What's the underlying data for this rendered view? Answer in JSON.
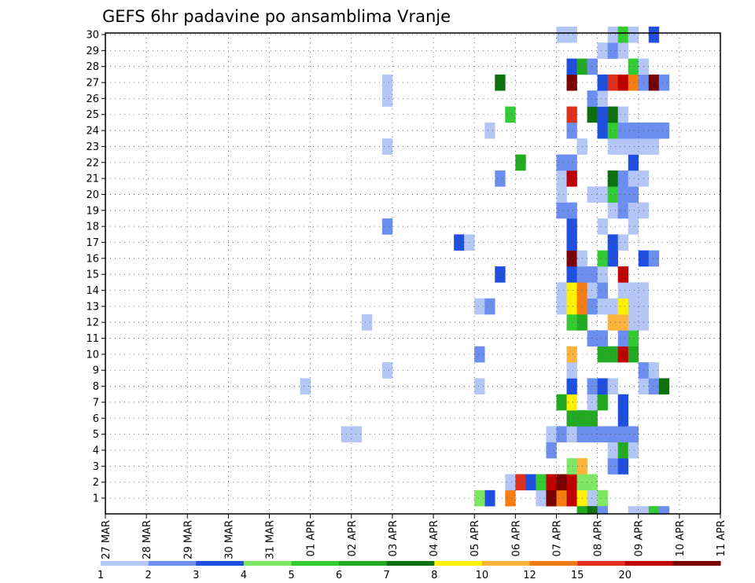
{
  "chart_data": {
    "type": "heatmap",
    "title": "GEFS 6hr padavine po ansamblima Vranje",
    "x_tick_labels": [
      "27 MAR",
      "28 MAR",
      "29 MAR",
      "30 MAR",
      "31 MAR",
      "01 APR",
      "02 APR",
      "03 APR",
      "04 APR",
      "05 APR",
      "06 APR",
      "07 APR",
      "08 APR",
      "09 APR",
      "10 APR",
      "11 APR"
    ],
    "y_tick_labels": [
      "1",
      "2",
      "3",
      "4",
      "5",
      "6",
      "7",
      "8",
      "9",
      "10",
      "11",
      "12",
      "13",
      "14",
      "15",
      "16",
      "17",
      "18",
      "19",
      "20",
      "21",
      "22",
      "23",
      "24",
      "25",
      "26",
      "27",
      "28",
      "29",
      "30"
    ],
    "x_range": [
      "27 MAR",
      "11 APR"
    ],
    "y_range": [
      1,
      30
    ],
    "steps_per_day": 4,
    "grid": true,
    "colorbar": {
      "labels": [
        "1",
        "2",
        "3",
        "4",
        "5",
        "6",
        "7",
        "8",
        "10",
        "12",
        "15",
        "20"
      ],
      "colors": [
        "#b3c6f5",
        "#6b8eef",
        "#1f4fe0",
        "#7ee862",
        "#32cc32",
        "#22aa22",
        "#0c700c",
        "#fff200",
        "#fcb43c",
        "#f57d13",
        "#e0301c",
        "#c00000",
        "#780000"
      ]
    },
    "cells": [
      [
        37,
        1,
        3
      ],
      [
        36,
        1,
        4
      ],
      [
        39,
        1,
        10
      ],
      [
        42,
        1,
        1
      ],
      [
        43,
        1,
        13
      ],
      [
        44,
        1,
        10
      ],
      [
        45,
        1,
        12
      ],
      [
        46,
        1,
        8
      ],
      [
        47,
        1,
        1
      ],
      [
        48,
        1,
        4
      ],
      [
        84,
        1,
        1
      ],
      [
        85,
        1,
        10
      ],
      [
        86,
        1,
        7
      ],
      [
        87,
        1,
        10
      ],
      [
        88,
        1,
        2
      ],
      [
        89,
        1,
        1
      ],
      [
        39,
        2,
        1
      ],
      [
        40,
        2,
        11
      ],
      [
        41,
        2,
        3
      ],
      [
        42,
        2,
        5
      ],
      [
        43,
        2,
        12
      ],
      [
        44,
        2,
        13
      ],
      [
        45,
        2,
        12
      ],
      [
        46,
        2,
        4
      ],
      [
        47,
        2,
        4
      ],
      [
        103,
        2,
        2
      ],
      [
        45,
        3,
        4
      ],
      [
        46,
        3,
        9
      ],
      [
        49,
        3,
        2
      ],
      [
        50,
        3,
        3
      ],
      [
        65,
        3,
        1
      ],
      [
        70,
        3,
        1
      ],
      [
        71,
        3,
        6
      ],
      [
        83,
        3,
        3
      ],
      [
        85,
        3,
        6
      ],
      [
        86,
        3,
        7
      ],
      [
        87,
        3,
        1
      ],
      [
        43,
        4,
        2
      ],
      [
        49,
        4,
        1
      ],
      [
        50,
        4,
        6
      ],
      [
        51,
        4,
        1
      ],
      [
        77,
        4,
        1
      ],
      [
        78,
        4,
        2
      ],
      [
        79,
        4,
        6
      ],
      [
        80,
        4,
        4
      ],
      [
        81,
        4,
        1
      ],
      [
        82,
        4,
        3
      ],
      [
        84,
        4,
        4
      ],
      [
        85,
        4,
        1
      ],
      [
        101,
        4,
        7
      ],
      [
        102,
        4,
        1
      ],
      [
        23,
        5,
        1
      ],
      [
        24,
        5,
        1
      ],
      [
        43,
        5,
        1
      ],
      [
        44,
        5,
        2
      ],
      [
        45,
        5,
        1
      ],
      [
        46,
        5,
        2
      ],
      [
        47,
        5,
        2
      ],
      [
        48,
        5,
        2
      ],
      [
        49,
        5,
        2
      ],
      [
        50,
        5,
        2
      ],
      [
        51,
        5,
        2
      ],
      [
        45,
        6,
        6
      ],
      [
        46,
        6,
        6
      ],
      [
        47,
        6,
        6
      ],
      [
        50,
        6,
        3
      ],
      [
        44,
        7,
        6
      ],
      [
        45,
        7,
        8
      ],
      [
        47,
        7,
        1
      ],
      [
        48,
        7,
        6
      ],
      [
        50,
        7,
        3
      ],
      [
        85,
        7,
        1
      ],
      [
        19,
        8,
        1
      ],
      [
        36,
        8,
        1
      ],
      [
        45,
        8,
        3
      ],
      [
        47,
        8,
        2
      ],
      [
        48,
        8,
        3
      ],
      [
        49,
        8,
        1
      ],
      [
        52,
        8,
        1
      ],
      [
        53,
        8,
        2
      ],
      [
        54,
        8,
        7
      ],
      [
        95,
        8,
        1
      ],
      [
        27,
        9,
        1
      ],
      [
        45,
        9,
        1
      ],
      [
        52,
        9,
        2
      ],
      [
        53,
        9,
        1
      ],
      [
        94,
        9,
        11
      ],
      [
        36,
        10,
        2
      ],
      [
        45,
        10,
        9
      ],
      [
        48,
        10,
        6
      ],
      [
        49,
        10,
        6
      ],
      [
        50,
        10,
        12
      ],
      [
        51,
        10,
        6
      ],
      [
        88,
        10,
        8
      ],
      [
        89,
        10,
        1
      ],
      [
        47,
        11,
        2
      ],
      [
        48,
        11,
        2
      ],
      [
        50,
        11,
        2
      ],
      [
        51,
        11,
        5
      ],
      [
        75,
        11,
        7
      ],
      [
        76,
        11,
        2
      ],
      [
        77,
        11,
        1
      ],
      [
        78,
        11,
        2
      ],
      [
        79,
        11,
        6
      ],
      [
        80,
        11,
        1
      ],
      [
        82,
        11,
        1
      ],
      [
        25,
        12,
        1
      ],
      [
        45,
        12,
        5
      ],
      [
        46,
        12,
        6
      ],
      [
        49,
        12,
        9
      ],
      [
        50,
        12,
        9
      ],
      [
        51,
        12,
        1
      ],
      [
        52,
        12,
        1
      ],
      [
        96,
        12,
        1
      ],
      [
        97,
        12,
        5
      ],
      [
        36,
        13,
        1
      ],
      [
        37,
        13,
        2
      ],
      [
        44,
        13,
        1
      ],
      [
        45,
        13,
        8
      ],
      [
        46,
        13,
        10
      ],
      [
        47,
        13,
        2
      ],
      [
        48,
        13,
        1
      ],
      [
        49,
        13,
        1
      ],
      [
        50,
        13,
        8
      ],
      [
        51,
        13,
        1
      ],
      [
        52,
        13,
        1
      ],
      [
        44,
        14,
        1
      ],
      [
        45,
        14,
        8
      ],
      [
        46,
        14,
        10
      ],
      [
        47,
        14,
        1
      ],
      [
        48,
        14,
        2
      ],
      [
        50,
        14,
        1
      ],
      [
        51,
        14,
        1
      ],
      [
        52,
        14,
        1
      ],
      [
        79,
        14,
        1
      ],
      [
        104,
        14,
        1
      ],
      [
        105,
        14,
        11
      ],
      [
        38,
        15,
        3
      ],
      [
        45,
        15,
        3
      ],
      [
        46,
        15,
        2
      ],
      [
        47,
        15,
        2
      ],
      [
        48,
        15,
        1
      ],
      [
        50,
        15,
        12
      ],
      [
        92,
        15,
        9
      ],
      [
        93,
        15,
        7
      ],
      [
        95,
        15,
        6
      ],
      [
        45,
        16,
        13
      ],
      [
        46,
        16,
        1
      ],
      [
        48,
        16,
        5
      ],
      [
        49,
        16,
        3
      ],
      [
        52,
        16,
        3
      ],
      [
        53,
        16,
        2
      ],
      [
        68,
        16,
        3
      ],
      [
        69,
        16,
        8
      ],
      [
        70,
        16,
        13
      ],
      [
        71,
        16,
        1
      ],
      [
        92,
        16,
        1
      ],
      [
        93,
        16,
        6
      ],
      [
        94,
        16,
        7
      ],
      [
        95,
        16,
        2
      ],
      [
        96,
        16,
        1
      ],
      [
        34,
        17,
        3
      ],
      [
        35,
        17,
        1
      ],
      [
        45,
        17,
        3
      ],
      [
        49,
        17,
        3
      ],
      [
        50,
        17,
        1
      ],
      [
        77,
        17,
        1
      ],
      [
        96,
        17,
        1
      ],
      [
        103,
        17,
        1
      ],
      [
        104,
        17,
        2
      ],
      [
        105,
        17,
        2
      ],
      [
        27,
        18,
        2
      ],
      [
        45,
        18,
        3
      ],
      [
        48,
        18,
        1
      ],
      [
        51,
        18,
        1
      ],
      [
        67,
        18,
        1
      ],
      [
        74,
        18,
        6
      ],
      [
        75,
        18,
        6
      ],
      [
        76,
        18,
        2
      ],
      [
        77,
        18,
        1
      ],
      [
        92,
        18,
        5
      ],
      [
        93,
        18,
        2
      ],
      [
        94,
        18,
        9
      ],
      [
        95,
        18,
        2
      ],
      [
        103,
        18,
        3
      ],
      [
        104,
        18,
        8
      ],
      [
        44,
        19,
        2
      ],
      [
        45,
        19,
        2
      ],
      [
        49,
        19,
        1
      ],
      [
        50,
        19,
        2
      ],
      [
        51,
        19,
        1
      ],
      [
        52,
        19,
        1
      ],
      [
        71,
        19,
        1
      ],
      [
        72,
        19,
        3
      ],
      [
        75,
        19,
        2
      ],
      [
        76,
        19,
        1
      ],
      [
        92,
        19,
        2
      ],
      [
        93,
        19,
        1
      ],
      [
        44,
        20,
        1
      ],
      [
        47,
        20,
        1
      ],
      [
        48,
        20,
        1
      ],
      [
        49,
        20,
        5
      ],
      [
        50,
        20,
        2
      ],
      [
        51,
        20,
        2
      ],
      [
        71,
        20,
        1
      ],
      [
        87,
        20,
        1
      ],
      [
        38,
        21,
        2
      ],
      [
        44,
        21,
        1
      ],
      [
        45,
        21,
        12
      ],
      [
        49,
        21,
        7
      ],
      [
        50,
        21,
        2
      ],
      [
        51,
        21,
        1
      ],
      [
        52,
        21,
        1
      ],
      [
        71,
        21,
        3
      ],
      [
        73,
        21,
        8
      ],
      [
        74,
        21,
        5
      ],
      [
        78,
        21,
        1
      ],
      [
        79,
        21,
        1
      ],
      [
        80,
        21,
        3
      ],
      [
        81,
        21,
        2
      ],
      [
        82,
        21,
        2
      ],
      [
        83,
        21,
        2
      ],
      [
        40,
        22,
        6
      ],
      [
        44,
        22,
        2
      ],
      [
        45,
        22,
        2
      ],
      [
        51,
        22,
        3
      ],
      [
        103,
        22,
        2
      ],
      [
        104,
        22,
        1
      ],
      [
        27,
        23,
        1
      ],
      [
        46,
        23,
        1
      ],
      [
        49,
        23,
        1
      ],
      [
        50,
        23,
        1
      ],
      [
        51,
        23,
        1
      ],
      [
        52,
        23,
        1
      ],
      [
        53,
        23,
        1
      ],
      [
        69,
        23,
        3
      ],
      [
        74,
        23,
        1
      ],
      [
        75,
        23,
        6
      ],
      [
        85,
        23,
        1
      ],
      [
        86,
        23,
        2
      ],
      [
        37,
        24,
        1
      ],
      [
        45,
        24,
        2
      ],
      [
        48,
        24,
        3
      ],
      [
        49,
        24,
        5
      ],
      [
        50,
        24,
        2
      ],
      [
        51,
        24,
        2
      ],
      [
        52,
        24,
        2
      ],
      [
        53,
        24,
        2
      ],
      [
        54,
        24,
        2
      ],
      [
        74,
        24,
        1
      ],
      [
        82,
        24,
        1
      ],
      [
        91,
        24,
        1
      ],
      [
        39,
        25,
        5
      ],
      [
        45,
        25,
        11
      ],
      [
        47,
        25,
        7
      ],
      [
        48,
        25,
        3
      ],
      [
        49,
        25,
        7
      ],
      [
        50,
        25,
        1
      ],
      [
        67,
        25,
        2
      ],
      [
        68,
        25,
        2
      ],
      [
        69,
        25,
        1
      ],
      [
        77,
        25,
        3
      ],
      [
        78,
        25,
        1
      ],
      [
        86,
        25,
        1
      ],
      [
        27,
        26,
        1
      ],
      [
        47,
        26,
        2
      ],
      [
        48,
        26,
        1
      ],
      [
        67,
        26,
        1
      ],
      [
        104,
        26,
        2
      ],
      [
        27,
        27,
        1
      ],
      [
        38,
        27,
        7
      ],
      [
        45,
        27,
        13
      ],
      [
        48,
        27,
        3
      ],
      [
        49,
        27,
        11
      ],
      [
        50,
        27,
        12
      ],
      [
        51,
        27,
        10
      ],
      [
        52,
        27,
        2
      ],
      [
        53,
        27,
        13
      ],
      [
        54,
        27,
        2
      ],
      [
        103,
        27,
        1
      ],
      [
        104,
        27,
        1
      ],
      [
        105,
        27,
        1
      ],
      [
        45,
        28,
        3
      ],
      [
        46,
        28,
        6
      ],
      [
        47,
        28,
        2
      ],
      [
        51,
        28,
        5
      ],
      [
        52,
        28,
        1
      ],
      [
        71,
        28,
        1
      ],
      [
        72,
        28,
        1
      ],
      [
        73,
        28,
        3
      ],
      [
        86,
        28,
        1
      ],
      [
        89,
        28,
        2
      ],
      [
        90,
        28,
        12
      ],
      [
        91,
        28,
        10
      ],
      [
        92,
        28,
        11
      ],
      [
        93,
        28,
        12
      ],
      [
        94,
        28,
        12
      ],
      [
        95,
        28,
        13
      ],
      [
        96,
        28,
        7
      ],
      [
        48,
        29,
        1
      ],
      [
        49,
        29,
        2
      ],
      [
        50,
        29,
        1
      ],
      [
        71,
        29,
        1
      ],
      [
        72,
        29,
        2
      ],
      [
        73,
        29,
        1
      ],
      [
        74,
        29,
        5
      ],
      [
        85,
        29,
        1
      ],
      [
        86,
        29,
        8
      ],
      [
        87,
        29,
        2
      ],
      [
        44,
        30,
        1
      ],
      [
        45,
        30,
        1
      ],
      [
        49,
        30,
        1
      ],
      [
        50,
        30,
        5
      ],
      [
        51,
        30,
        1
      ],
      [
        53,
        30,
        3
      ],
      [
        98,
        30,
        1
      ]
    ],
    "bottom_row_cells": [
      [
        46,
        6
      ],
      [
        47,
        7
      ],
      [
        48,
        2
      ],
      [
        51,
        1
      ],
      [
        52,
        1
      ],
      [
        53,
        5
      ],
      [
        54,
        2
      ],
      [
        87,
        1
      ],
      [
        94,
        2
      ]
    ]
  }
}
